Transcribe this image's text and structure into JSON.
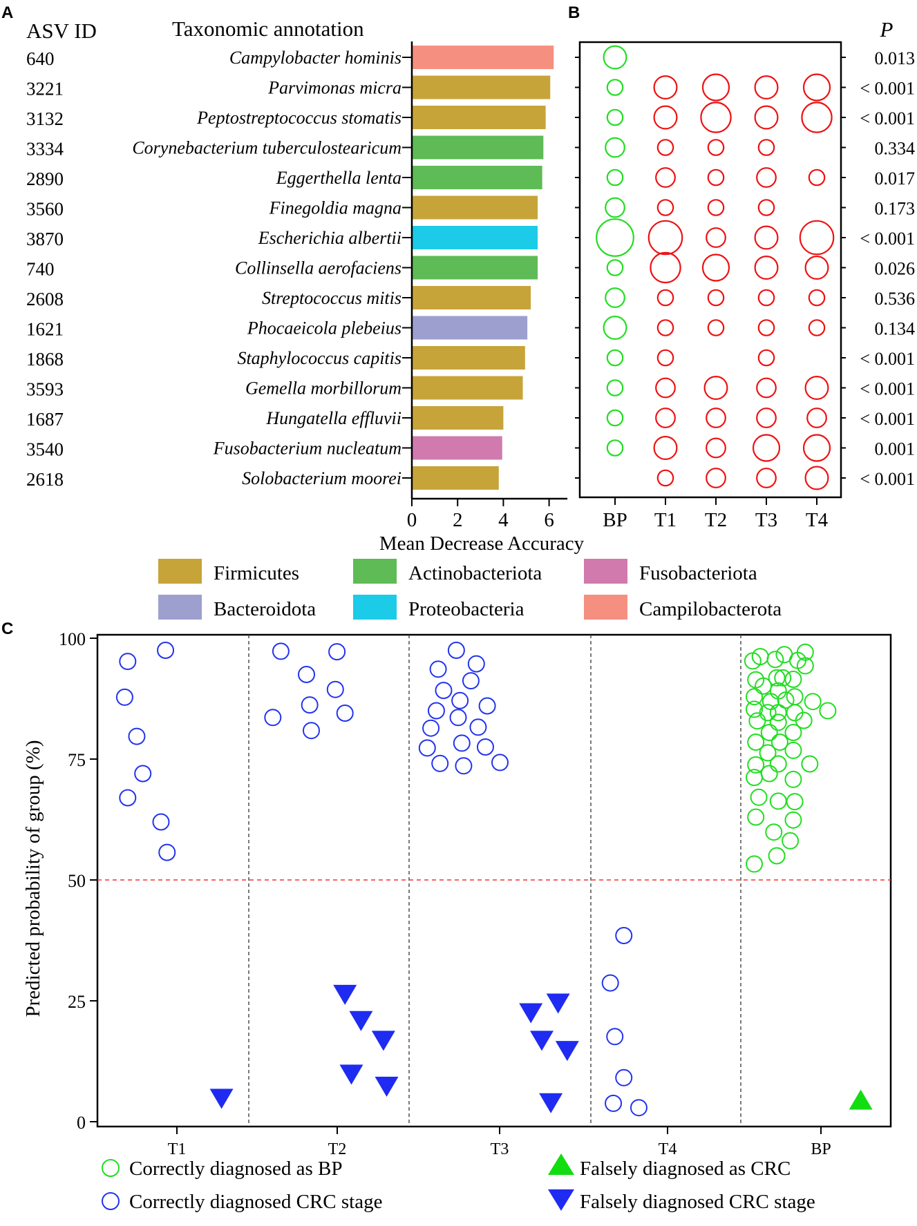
{
  "panel_labels": {
    "a": "A",
    "b": "B",
    "c": "C"
  },
  "chart_data": [
    {
      "id": "A",
      "type": "bar",
      "orientation": "horizontal",
      "column_headers": {
        "asv": "ASV ID",
        "taxon": "Taxonomic annotation"
      },
      "asv_ids": [
        "640",
        "3221",
        "3132",
        "3334",
        "2890",
        "3560",
        "3870",
        "740",
        "2608",
        "1621",
        "1868",
        "3593",
        "1687",
        "3540",
        "2618"
      ],
      "categories": [
        "Campylobacter hominis",
        "Parvimonas micra",
        "Peptostreptococcus stomatis",
        "Corynebacterium tuberculostearicum",
        "Eggerthella lenta",
        "Finegoldia magna",
        "Escherichia albertii",
        "Collinsella aerofaciens",
        "Streptococcus mitis",
        "Phocaeicola plebeius",
        "Staphylococcus capitis",
        "Gemella morbillorum",
        "Hungatella effluvii",
        "Fusobacterium nucleatum",
        "Solobacterium moorei"
      ],
      "phylum": [
        "Campilobacterota",
        "Firmicutes",
        "Firmicutes",
        "Actinobacteriota",
        "Actinobacteriota",
        "Firmicutes",
        "Proteobacteria",
        "Actinobacteriota",
        "Firmicutes",
        "Bacteroidota",
        "Firmicutes",
        "Firmicutes",
        "Firmicutes",
        "Fusobacteriota",
        "Firmicutes"
      ],
      "values": [
        6.2,
        6.05,
        5.85,
        5.75,
        5.7,
        5.5,
        5.5,
        5.5,
        5.2,
        5.05,
        4.95,
        4.85,
        4.0,
        3.95,
        3.8
      ],
      "xlabel": "Mean Decrease Accuracy",
      "xlim": [
        0,
        6.8
      ],
      "xticks": [
        0,
        2,
        4,
        6
      ],
      "legend": [
        {
          "label": "Firmicutes",
          "color": "#c7a43a"
        },
        {
          "label": "Actinobacteriota",
          "color": "#5fbb55"
        },
        {
          "label": "Fusobacteriota",
          "color": "#d07aad"
        },
        {
          "label": "Bacteroidota",
          "color": "#9d9fcf"
        },
        {
          "label": "Proteobacteria",
          "color": "#1ccbe7"
        },
        {
          "label": "Campilobacterota",
          "color": "#f58f80"
        }
      ],
      "legend_position": "bottom"
    },
    {
      "id": "B",
      "type": "scatter",
      "subtype": "bubble",
      "columns": [
        "BP",
        "T1",
        "T2",
        "T3",
        "T4"
      ],
      "sizes": [
        [
          4,
          0,
          0,
          0,
          0
        ],
        [
          2,
          4,
          5,
          4,
          5
        ],
        [
          2,
          4,
          6,
          4,
          6
        ],
        [
          3,
          2,
          2,
          2,
          0
        ],
        [
          2,
          3,
          2,
          3,
          2
        ],
        [
          3,
          2,
          2,
          2,
          0
        ],
        [
          8,
          7,
          3,
          4,
          7
        ],
        [
          2,
          6,
          5,
          4,
          4
        ],
        [
          3,
          2,
          2,
          2,
          2
        ],
        [
          4,
          2,
          2,
          2,
          2
        ],
        [
          2,
          2,
          0,
          2,
          0
        ],
        [
          2,
          3,
          4,
          3,
          4
        ],
        [
          2,
          3,
          3,
          3,
          3
        ],
        [
          2,
          4,
          3,
          5,
          5
        ],
        [
          0,
          2,
          3,
          3,
          4
        ]
      ],
      "colors": {
        "BP": "#22dd22",
        "tumor": "#ee1111"
      },
      "p_header": "P",
      "p_values": [
        "0.013",
        "< 0.001",
        "< 0.001",
        "0.334",
        "0.017",
        "0.173",
        "< 0.001",
        "0.026",
        "0.536",
        "0.134",
        "< 0.001",
        "< 0.001",
        "< 0.001",
        "0.001",
        "< 0.001"
      ]
    },
    {
      "id": "C",
      "type": "scatter",
      "ylabel": "Predicted probability of group (%)",
      "ylim": [
        0,
        100
      ],
      "yticks": [
        0,
        25,
        50,
        75,
        100
      ],
      "categories": [
        "T1",
        "T2",
        "T3",
        "T4",
        "BP"
      ],
      "threshold": 50,
      "threshold_color": "#ee3333",
      "series": [
        {
          "name": "Correctly diagnosed CRC stage",
          "marker": "open-circle",
          "color": "#2233ee",
          "points": [
            {
              "x": 0.2,
              "y": 95.2
            },
            {
              "x": 0.45,
              "y": 97.5
            },
            {
              "x": 0.18,
              "y": 87.8
            },
            {
              "x": 0.26,
              "y": 79.7
            },
            {
              "x": 0.3,
              "y": 72
            },
            {
              "x": 0.2,
              "y": 67
            },
            {
              "x": 0.42,
              "y": 62
            },
            {
              "x": 0.46,
              "y": 55.7
            },
            {
              "x": 1.2,
              "y": 97.3
            },
            {
              "x": 1.55,
              "y": 97.2
            },
            {
              "x": 1.36,
              "y": 92.5
            },
            {
              "x": 1.54,
              "y": 89.4
            },
            {
              "x": 1.38,
              "y": 86.2
            },
            {
              "x": 1.6,
              "y": 84.5
            },
            {
              "x": 1.15,
              "y": 83.6
            },
            {
              "x": 1.39,
              "y": 80.9
            },
            {
              "x": 2.26,
              "y": 97.5
            },
            {
              "x": 2.37,
              "y": 94.7
            },
            {
              "x": 2.16,
              "y": 93.6
            },
            {
              "x": 2.34,
              "y": 91.2
            },
            {
              "x": 2.19,
              "y": 89.2
            },
            {
              "x": 2.28,
              "y": 87.1
            },
            {
              "x": 2.43,
              "y": 86.0
            },
            {
              "x": 2.15,
              "y": 85.0
            },
            {
              "x": 2.27,
              "y": 83.6
            },
            {
              "x": 2.12,
              "y": 81.4
            },
            {
              "x": 2.38,
              "y": 81.6
            },
            {
              "x": 2.29,
              "y": 78.3
            },
            {
              "x": 2.42,
              "y": 77.5
            },
            {
              "x": 2.1,
              "y": 77.3
            },
            {
              "x": 2.17,
              "y": 74.1
            },
            {
              "x": 2.3,
              "y": 73.6
            },
            {
              "x": 2.5,
              "y": 74.3
            },
            {
              "x": 3.22,
              "y": 38.5
            },
            {
              "x": 3.13,
              "y": 28.7
            },
            {
              "x": 3.16,
              "y": 17.6
            },
            {
              "x": 3.22,
              "y": 9.1
            },
            {
              "x": 3.15,
              "y": 3.8
            },
            {
              "x": 3.32,
              "y": 2.9
            }
          ]
        },
        {
          "name": "Correctly diagnosed as BP",
          "marker": "open-circle",
          "color": "#22dd22",
          "points": [
            {
              "x": 4.08,
              "y": 95.3
            },
            {
              "x": 4.13,
              "y": 96.2
            },
            {
              "x": 4.23,
              "y": 95.6
            },
            {
              "x": 4.29,
              "y": 96.6
            },
            {
              "x": 4.43,
              "y": 97.1
            },
            {
              "x": 4.38,
              "y": 95.4
            },
            {
              "x": 4.43,
              "y": 94.3
            },
            {
              "x": 4.1,
              "y": 91.4
            },
            {
              "x": 4.24,
              "y": 91.8
            },
            {
              "x": 4.28,
              "y": 91.8
            },
            {
              "x": 4.35,
              "y": 91.5
            },
            {
              "x": 4.15,
              "y": 90.1
            },
            {
              "x": 4.25,
              "y": 89.1
            },
            {
              "x": 4.09,
              "y": 87.9
            },
            {
              "x": 4.36,
              "y": 87.9
            },
            {
              "x": 4.48,
              "y": 86.9
            },
            {
              "x": 4.2,
              "y": 86.9
            },
            {
              "x": 4.3,
              "y": 87.2
            },
            {
              "x": 4.58,
              "y": 85.0
            },
            {
              "x": 4.09,
              "y": 85.3
            },
            {
              "x": 4.18,
              "y": 84.6
            },
            {
              "x": 4.25,
              "y": 84.6
            },
            {
              "x": 4.36,
              "y": 84.6
            },
            {
              "x": 4.42,
              "y": 83.0
            },
            {
              "x": 4.11,
              "y": 82.9
            },
            {
              "x": 4.25,
              "y": 82.6
            },
            {
              "x": 4.19,
              "y": 80.5
            },
            {
              "x": 4.35,
              "y": 80.5
            },
            {
              "x": 4.1,
              "y": 78.5
            },
            {
              "x": 4.26,
              "y": 78.5
            },
            {
              "x": 4.35,
              "y": 76.8
            },
            {
              "x": 4.18,
              "y": 76.3
            },
            {
              "x": 4.1,
              "y": 73.8
            },
            {
              "x": 4.25,
              "y": 74.0
            },
            {
              "x": 4.46,
              "y": 74.0
            },
            {
              "x": 4.19,
              "y": 72.0
            },
            {
              "x": 4.09,
              "y": 71.2
            },
            {
              "x": 4.35,
              "y": 70.8
            },
            {
              "x": 4.12,
              "y": 67.1
            },
            {
              "x": 4.25,
              "y": 66.3
            },
            {
              "x": 4.36,
              "y": 66.2
            },
            {
              "x": 4.1,
              "y": 63.0
            },
            {
              "x": 4.35,
              "y": 62.4
            },
            {
              "x": 4.22,
              "y": 59.9
            },
            {
              "x": 4.33,
              "y": 58.1
            },
            {
              "x": 4.24,
              "y": 55.0
            },
            {
              "x": 4.09,
              "y": 53.3
            }
          ]
        },
        {
          "name": "Falsely diagnosed as CRC",
          "marker": "triangle-up",
          "color": "#11dd11",
          "points": [
            {
              "x": 4.8,
              "y": 4.5
            }
          ]
        },
        {
          "name": "Falsely diagnosed CRC stage",
          "marker": "triangle-down",
          "color": "#1f2bf0",
          "points": [
            {
              "x": 0.82,
              "y": 4.8
            },
            {
              "x": 1.6,
              "y": 26.3
            },
            {
              "x": 1.7,
              "y": 20.9
            },
            {
              "x": 1.84,
              "y": 16.8
            },
            {
              "x": 1.64,
              "y": 9.8
            },
            {
              "x": 1.86,
              "y": 7.3
            },
            {
              "x": 2.67,
              "y": 22.5
            },
            {
              "x": 2.82,
              "y": 24.5
            },
            {
              "x": 2.73,
              "y": 16.8
            },
            {
              "x": 2.87,
              "y": 14.7
            },
            {
              "x": 2.78,
              "y": 3.9
            }
          ]
        }
      ],
      "legend_position": "bottom"
    }
  ]
}
